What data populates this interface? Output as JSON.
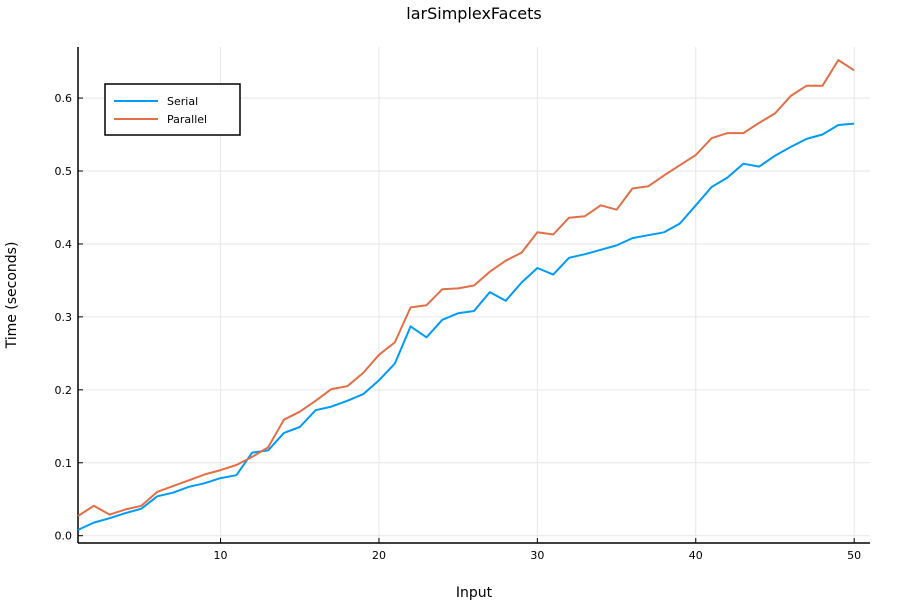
{
  "chart_data": {
    "type": "line",
    "title": "larSimplexFacets",
    "xlabel": "Input",
    "ylabel": "Time (seconds)",
    "xlim": [
      1,
      51
    ],
    "ylim": [
      -0.01,
      0.67
    ],
    "xticks": [
      10,
      20,
      30,
      40,
      50
    ],
    "yticks": [
      0.0,
      0.1,
      0.2,
      0.3,
      0.4,
      0.5,
      0.6
    ],
    "ytick_labels": [
      "0.0",
      "0.1",
      "0.2",
      "0.3",
      "0.4",
      "0.5",
      "0.6"
    ],
    "grid": true,
    "legend_position": "top-left",
    "x": [
      1,
      2,
      3,
      4,
      5,
      6,
      7,
      8,
      9,
      10,
      11,
      12,
      13,
      14,
      15,
      16,
      17,
      18,
      19,
      20,
      21,
      22,
      23,
      24,
      25,
      26,
      27,
      28,
      29,
      30,
      31,
      32,
      33,
      34,
      35,
      36,
      37,
      38,
      39,
      40,
      41,
      42,
      43,
      44,
      45,
      46,
      47,
      48,
      49,
      50
    ],
    "series": [
      {
        "name": "Serial",
        "color": "#009af9",
        "values": [
          0.008,
          0.018,
          0.024,
          0.031,
          0.037,
          0.054,
          0.059,
          0.067,
          0.072,
          0.079,
          0.083,
          0.114,
          0.117,
          0.141,
          0.149,
          0.172,
          0.177,
          0.185,
          0.194,
          0.213,
          0.236,
          0.287,
          0.272,
          0.296,
          0.305,
          0.308,
          0.334,
          0.322,
          0.347,
          0.367,
          0.358,
          0.381,
          0.386,
          0.392,
          0.398,
          0.408,
          0.412,
          0.416,
          0.428,
          0.453,
          0.478,
          0.491,
          0.51,
          0.506,
          0.521,
          0.533,
          0.544,
          0.55,
          0.563,
          0.565
        ]
      },
      {
        "name": "Parallel",
        "color": "#e26f46",
        "values": [
          0.027,
          0.041,
          0.029,
          0.036,
          0.041,
          0.06,
          0.068,
          0.076,
          0.084,
          0.09,
          0.097,
          0.108,
          0.121,
          0.159,
          0.17,
          0.185,
          0.201,
          0.205,
          0.223,
          0.248,
          0.265,
          0.313,
          0.316,
          0.338,
          0.339,
          0.343,
          0.362,
          0.377,
          0.388,
          0.416,
          0.413,
          0.436,
          0.438,
          0.453,
          0.447,
          0.476,
          0.479,
          0.494,
          0.508,
          0.522,
          0.545,
          0.552,
          0.552,
          0.566,
          0.579,
          0.603,
          0.617,
          0.617,
          0.652,
          0.638
        ]
      }
    ]
  }
}
